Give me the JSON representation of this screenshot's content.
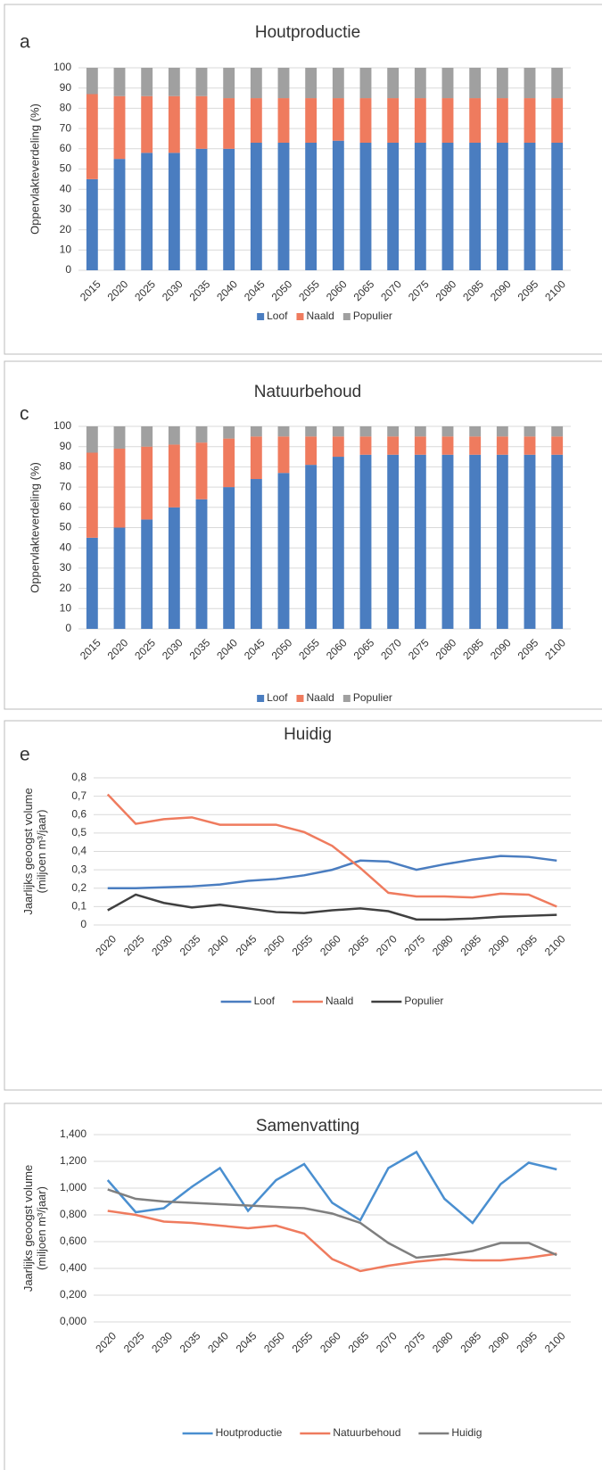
{
  "chart_data": [
    {
      "type": "stacked_bar",
      "panel_label": "a",
      "title": "Houtproductie",
      "ylabel": [
        "Oppervlakteverdeling (%)"
      ],
      "categories": [
        "2015",
        "2020",
        "2025",
        "2030",
        "2035",
        "2040",
        "2045",
        "2050",
        "2055",
        "2060",
        "2065",
        "2070",
        "2075",
        "2080",
        "2085",
        "2090",
        "2095",
        "2100"
      ],
      "series": [
        {
          "name": "Loof",
          "color": "#4a7dc0",
          "values": [
            45,
            55,
            58,
            58,
            60,
            60,
            63,
            63,
            63,
            64,
            63,
            63,
            63,
            63,
            63,
            63,
            63,
            63
          ]
        },
        {
          "name": "Naald",
          "color": "#ef7b5e",
          "values": [
            42,
            31,
            28,
            28,
            26,
            25,
            22,
            22,
            22,
            21,
            22,
            22,
            22,
            22,
            22,
            22,
            22,
            22
          ]
        },
        {
          "name": "Populier",
          "color": "#a0a0a0",
          "values": [
            13,
            14,
            14,
            14,
            14,
            15,
            15,
            15,
            15,
            15,
            15,
            15,
            15,
            15,
            15,
            15,
            15,
            15
          ]
        }
      ],
      "ylim": [
        0,
        100
      ],
      "yticks": [
        0,
        10,
        20,
        30,
        40,
        50,
        60,
        70,
        80,
        90,
        100
      ]
    },
    {
      "type": "stacked_bar",
      "panel_label": "c",
      "title": "Natuurbehoud",
      "ylabel": [
        "Oppervlakteverdeling (%)"
      ],
      "categories": [
        "2015",
        "2020",
        "2025",
        "2030",
        "2035",
        "2040",
        "2045",
        "2050",
        "2055",
        "2060",
        "2065",
        "2070",
        "2075",
        "2080",
        "2085",
        "2090",
        "2095",
        "2100"
      ],
      "series": [
        {
          "name": "Loof",
          "color": "#4a7dc0",
          "values": [
            45,
            50,
            54,
            60,
            64,
            70,
            74,
            77,
            81,
            85,
            86,
            86,
            86,
            86,
            86,
            86,
            86,
            86
          ]
        },
        {
          "name": "Naald",
          "color": "#ef7b5e",
          "values": [
            42,
            39,
            36,
            31,
            28,
            24,
            21,
            18,
            14,
            10,
            9,
            9,
            9,
            9,
            9,
            9,
            9,
            9
          ]
        },
        {
          "name": "Populier",
          "color": "#a0a0a0",
          "values": [
            13,
            11,
            10,
            9,
            8,
            6,
            5,
            5,
            5,
            5,
            5,
            5,
            5,
            5,
            5,
            5,
            5,
            5
          ]
        }
      ],
      "ylim": [
        0,
        100
      ],
      "yticks": [
        0,
        10,
        20,
        30,
        40,
        50,
        60,
        70,
        80,
        90,
        100
      ]
    },
    {
      "type": "line",
      "panel_label": "e",
      "title": "Huidig",
      "ylabel": [
        "Jaarlijks geoogst volume",
        "(miljoen m³/jaar)"
      ],
      "categories": [
        "2020",
        "2025",
        "2030",
        "2035",
        "2040",
        "2045",
        "2050",
        "2055",
        "2060",
        "2065",
        "2070",
        "2075",
        "2080",
        "2085",
        "2090",
        "2095",
        "2100"
      ],
      "series": [
        {
          "name": "Loof",
          "color": "#4a7dc0",
          "values": [
            0.2,
            0.2,
            0.205,
            0.21,
            0.22,
            0.24,
            0.25,
            0.27,
            0.3,
            0.35,
            0.345,
            0.3,
            0.33,
            0.355,
            0.375,
            0.37,
            0.35
          ]
        },
        {
          "name": "Naald",
          "color": "#ef7b5e",
          "values": [
            0.71,
            0.55,
            0.575,
            0.585,
            0.545,
            0.545,
            0.545,
            0.505,
            0.43,
            0.31,
            0.175,
            0.155,
            0.155,
            0.15,
            0.17,
            0.165,
            0.1
          ]
        },
        {
          "name": "Populier",
          "color": "#404040",
          "values": [
            0.08,
            0.165,
            0.12,
            0.095,
            0.11,
            0.09,
            0.07,
            0.065,
            0.08,
            0.09,
            0.075,
            0.03,
            0.03,
            0.035,
            0.045,
            0.05,
            0.055
          ]
        }
      ],
      "ylim": [
        0,
        0.8
      ],
      "yticks": [
        0,
        {
          "value": 0.1,
          "label": "0,1"
        },
        {
          "value": 0.2,
          "label": "0,2"
        },
        {
          "value": 0.3,
          "label": "0,3"
        },
        {
          "value": 0.4,
          "label": "0,4"
        },
        {
          "value": 0.5,
          "label": "0,5"
        },
        {
          "value": 0.6,
          "label": "0,6"
        },
        {
          "value": 0.7,
          "label": "0,7"
        },
        {
          "value": 0.8,
          "label": "0,8"
        }
      ]
    },
    {
      "type": "line",
      "title": "Samenvatting",
      "ylabel": [
        "Jaarlijks geoogst volume",
        "(miljoen m³/jaar)"
      ],
      "categories": [
        "2020",
        "2025",
        "2030",
        "2035",
        "2040",
        "2045",
        "2050",
        "2055",
        "2060",
        "2065",
        "2070",
        "2075",
        "2080",
        "2085",
        "2090",
        "2095",
        "2100"
      ],
      "series": [
        {
          "name": "Houtproductie",
          "color": "#4a8fd0",
          "values": [
            1.06,
            0.82,
            0.85,
            1.01,
            1.15,
            0.83,
            1.06,
            1.18,
            0.89,
            0.76,
            1.15,
            1.27,
            0.92,
            0.74,
            1.03,
            1.19,
            1.14
          ]
        },
        {
          "name": "Natuurbehoud",
          "color": "#ef7b5e",
          "values": [
            0.83,
            0.8,
            0.75,
            0.74,
            0.72,
            0.7,
            0.72,
            0.66,
            0.47,
            0.38,
            0.42,
            0.45,
            0.47,
            0.46,
            0.46,
            0.48,
            0.51
          ]
        },
        {
          "name": "Huidig",
          "color": "#7f7f7f",
          "values": [
            0.99,
            0.92,
            0.9,
            0.89,
            0.88,
            0.87,
            0.86,
            0.85,
            0.81,
            0.74,
            0.59,
            0.48,
            0.5,
            0.53,
            0.59,
            0.59,
            0.5
          ]
        }
      ],
      "ylim": [
        0,
        1.4
      ],
      "yticks": [
        {
          "value": 0,
          "label": "0,000"
        },
        {
          "value": 0.2,
          "label": "0,200"
        },
        {
          "value": 0.4,
          "label": "0,400"
        },
        {
          "value": 0.6,
          "label": "0,600"
        },
        {
          "value": 0.8,
          "label": "0,800"
        },
        {
          "value": 1.0,
          "label": "1,000"
        },
        {
          "value": 1.2,
          "label": "1,200"
        },
        {
          "value": 1.4,
          "label": "1,400"
        }
      ]
    }
  ]
}
